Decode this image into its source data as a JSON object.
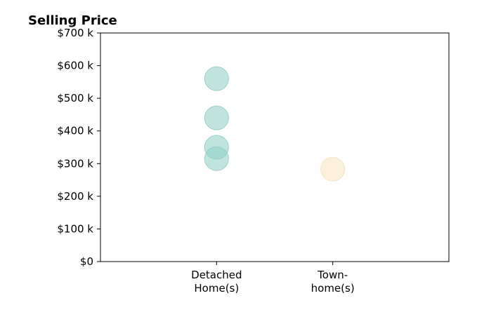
{
  "chart_data": {
    "type": "scatter",
    "title": "Selling Price",
    "xlabel": "",
    "ylabel": "",
    "categories": [
      [
        "Detached",
        "Home(s)"
      ],
      [
        "Town-",
        "home(s)"
      ]
    ],
    "xlim": [
      -1,
      2
    ],
    "ylim": [
      0,
      700
    ],
    "y_ticks": [
      0,
      100,
      200,
      300,
      400,
      500,
      600,
      700
    ],
    "y_tick_labels": [
      "$0",
      "$100 k",
      "$200 k",
      "$300 k",
      "$400 k",
      "$500 k",
      "$600 k",
      "$700 k"
    ],
    "grid": false,
    "series": [
      {
        "color": "#8ecdc4",
        "points": [
          {
            "category": 0,
            "y": 560
          },
          {
            "category": 0,
            "y": 440
          },
          {
            "category": 0,
            "y": 350
          },
          {
            "category": 0,
            "y": 315
          }
        ]
      },
      {
        "color": "#f6e3bd",
        "points": [
          {
            "category": 1,
            "y": 283
          }
        ]
      }
    ]
  }
}
